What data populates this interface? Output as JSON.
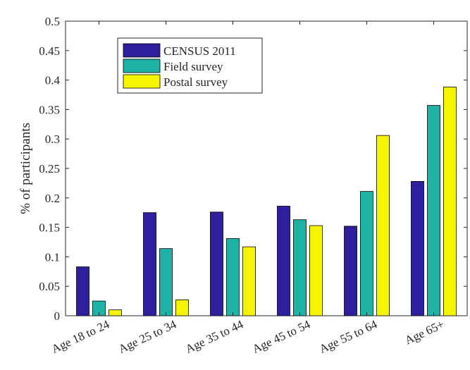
{
  "chart_data": {
    "type": "bar",
    "title": "",
    "xlabel": "",
    "ylabel": "% of participants",
    "categories": [
      "Age 18 to 24",
      "Age 25 to 34",
      "Age 35 to 44",
      "Age 45 to 54",
      "Age 55 to 64",
      "Age 65+"
    ],
    "series": [
      {
        "name": "CENSUS 2011",
        "color": "#2e1f9e",
        "values": [
          0.083,
          0.175,
          0.176,
          0.186,
          0.152,
          0.228
        ]
      },
      {
        "name": "Field survey",
        "color": "#1fb3a7",
        "values": [
          0.025,
          0.114,
          0.131,
          0.163,
          0.211,
          0.357
        ]
      },
      {
        "name": "Postal survey",
        "color": "#f5f500",
        "values": [
          0.01,
          0.027,
          0.117,
          0.153,
          0.306,
          0.388
        ]
      }
    ],
    "ylim": [
      0,
      0.5
    ],
    "yticks": [
      "0",
      "0.05",
      "0.1",
      "0.15",
      "0.2",
      "0.25",
      "0.3",
      "0.35",
      "0.4",
      "0.45",
      "0.5"
    ],
    "grid": false,
    "legend_position": "top-left"
  }
}
